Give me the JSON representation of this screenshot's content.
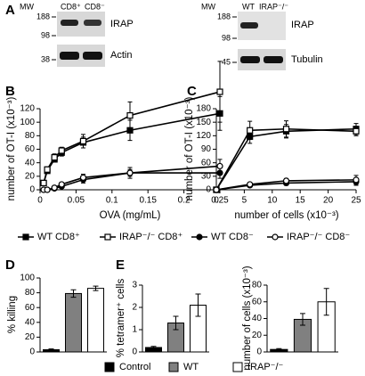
{
  "panel_labels": [
    "A",
    "B",
    "C",
    "D",
    "E"
  ],
  "blots": {
    "left": {
      "mw_label": "MW",
      "mw": [
        "188",
        "98",
        "38"
      ],
      "lanes": [
        "CD8⁺",
        "CD8⁻"
      ],
      "proteins": [
        "IRAP",
        "Actin"
      ]
    },
    "right": {
      "mw_label": "MW",
      "mw": [
        "188",
        "98",
        "45"
      ],
      "lanes": [
        "WT",
        "IRAP⁻/⁻"
      ],
      "proteins": [
        "IRAP",
        "Tubulin"
      ]
    }
  },
  "chart_data": [
    {
      "type": "line",
      "xlabel": "OVA (mg/mL)",
      "ylabel": "number of OT-I (x10⁻³)",
      "x": [
        0.005,
        0.01,
        0.02,
        0.03,
        0.06,
        0.125,
        0.25
      ],
      "xlim": [
        0,
        0.25
      ],
      "xticks": [
        0,
        0.05,
        0.1,
        0.15,
        0.2,
        0.25
      ],
      "ylim": [
        0,
        120
      ],
      "yticks": [
        0,
        20,
        40,
        60,
        80,
        100,
        120
      ],
      "series": [
        {
          "name": "WT CD8⁺",
          "color": "#000000",
          "marker": "square",
          "filled": true,
          "values": [
            10,
            28,
            45,
            55,
            70,
            88,
            113
          ],
          "errors": [
            3,
            3,
            4,
            5,
            8,
            15,
            25
          ]
        },
        {
          "name": "IRAP⁻/⁻ CD8⁺",
          "color": "#000000",
          "marker": "square",
          "filled": false,
          "values": [
            10,
            30,
            48,
            58,
            72,
            110,
            145
          ],
          "errors": [
            3,
            4,
            5,
            5,
            10,
            20,
            45
          ]
        },
        {
          "color": "#000000",
          "marker": "circle",
          "filled": true,
          "values": [
            0,
            0,
            2,
            5,
            15,
            25,
            25
          ],
          "errors": [
            1,
            1,
            1,
            2,
            5,
            5,
            8
          ]
        },
        {
          "color": "#000000",
          "marker": "circle",
          "filled": false,
          "values": [
            0,
            0,
            3,
            8,
            18,
            25,
            35
          ],
          "errors": [
            1,
            1,
            1,
            2,
            5,
            8,
            10
          ]
        }
      ]
    },
    {
      "type": "line",
      "xlabel": "number of cells (x10⁻³)",
      "ylabel": "number of OT-I (x10⁻³)",
      "x": [
        0,
        6,
        12.5,
        25
      ],
      "xlim": [
        0,
        25
      ],
      "xticks": [
        0,
        5,
        10,
        15,
        20,
        25
      ],
      "ylim": [
        0,
        180
      ],
      "yticks": [
        0,
        30,
        60,
        90,
        120,
        150,
        180
      ],
      "series": [
        {
          "color": "#000000",
          "marker": "square",
          "filled": true,
          "values": [
            0,
            118,
            130,
            135
          ],
          "errors": [
            0,
            15,
            15,
            12
          ]
        },
        {
          "color": "#000000",
          "marker": "square",
          "filled": false,
          "values": [
            0,
            132,
            135,
            130
          ],
          "errors": [
            0,
            20,
            18,
            10
          ]
        },
        {
          "name": "WT CD8⁻",
          "color": "#000000",
          "marker": "circle",
          "filled": true,
          "values": [
            0,
            10,
            15,
            18
          ],
          "errors": [
            0,
            3,
            5,
            8
          ]
        },
        {
          "name": "IRAP⁻/⁻ CD8⁻",
          "color": "#000000",
          "marker": "circle",
          "filled": false,
          "values": [
            0,
            12,
            20,
            22
          ],
          "errors": [
            0,
            3,
            5,
            10
          ]
        }
      ]
    },
    {
      "type": "bar",
      "ylabel": "% killing",
      "categories": [
        null,
        null,
        null
      ],
      "values": [
        3,
        79,
        86
      ],
      "errors": [
        1,
        5,
        3
      ],
      "colors": [
        "#000000",
        "#808080",
        "#ffffff"
      ],
      "ylim": [
        0,
        100
      ],
      "yticks": [
        0,
        20,
        40,
        60,
        80,
        100
      ]
    },
    {
      "type": "bar",
      "ylabel": "% tetramer⁺ cells",
      "categories": [
        null,
        null,
        null
      ],
      "values": [
        0.2,
        1.3,
        2.1
      ],
      "errors": [
        0.05,
        0.3,
        0.5
      ],
      "colors": [
        "#000000",
        "#808080",
        "#ffffff"
      ],
      "ylim": [
        0,
        3
      ],
      "yticks": [
        0,
        1,
        2,
        3
      ]
    },
    {
      "type": "bar",
      "ylabel": "number of cells (x10⁻³)",
      "categories": [
        null,
        null,
        null
      ],
      "values": [
        3,
        39,
        60
      ],
      "errors": [
        1,
        7,
        16
      ],
      "colors": [
        "#000000",
        "#808080",
        "#ffffff"
      ],
      "ylim": [
        0,
        80
      ],
      "yticks": [
        0,
        20,
        40,
        60,
        80
      ]
    }
  ],
  "shared_legend": [
    {
      "name": "Control",
      "color": "#000000"
    },
    {
      "name": "WT",
      "color": "#808080"
    },
    {
      "name": "IRAP⁻/⁻",
      "color": "#ffffff"
    }
  ]
}
